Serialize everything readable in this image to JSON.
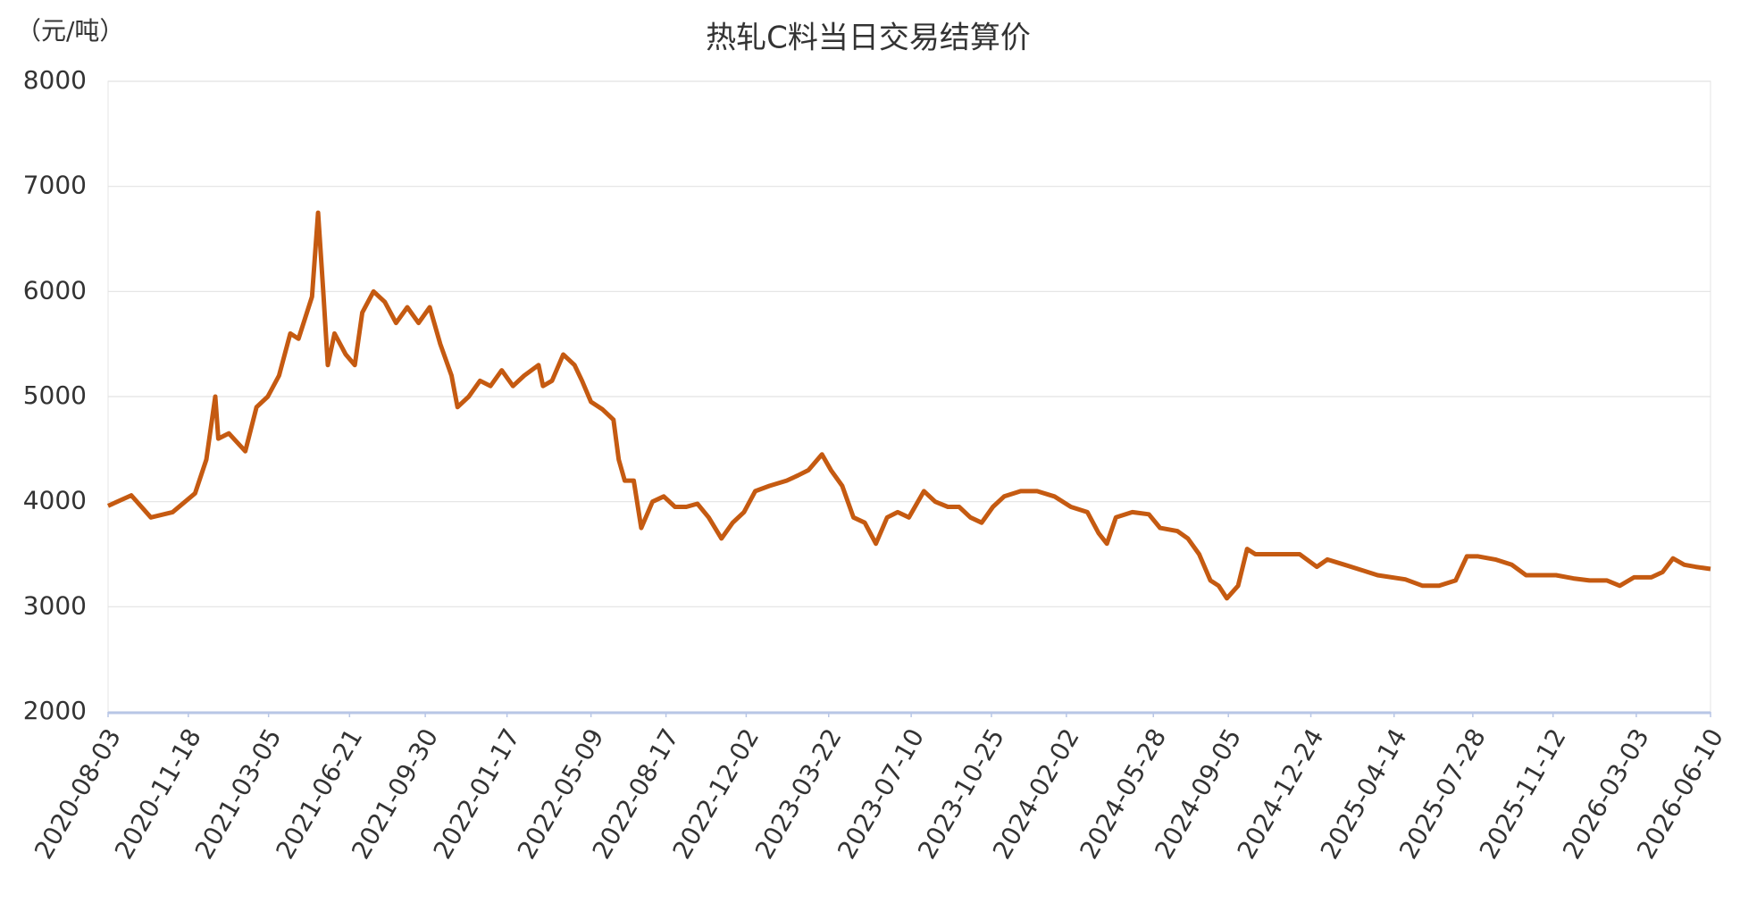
{
  "chart_data": {
    "type": "line",
    "title": "热轧C料当日交易结算价",
    "y_label": "（元/吨）",
    "x": [
      "2020-08-03",
      "2020-09-03",
      "2020-09-29",
      "2020-10-28",
      "2020-11-27",
      "2020-12-12",
      "2020-12-24",
      "2020-12-28",
      "2021-01-11",
      "2021-02-02",
      "2021-02-17",
      "2021-03-04",
      "2021-03-19",
      "2021-04-03",
      "2021-04-14",
      "2021-05-02",
      "2021-05-10",
      "2021-05-17",
      "2021-05-23",
      "2021-06-01",
      "2021-06-16",
      "2021-06-28",
      "2021-07-08",
      "2021-07-23",
      "2021-08-07",
      "2021-08-22",
      "2021-09-06",
      "2021-09-21",
      "2021-10-06",
      "2021-10-20",
      "2021-11-04",
      "2021-11-12",
      "2021-11-27",
      "2021-12-12",
      "2021-12-26",
      "2022-01-10",
      "2022-01-25",
      "2022-02-09",
      "2022-02-28",
      "2022-03-06",
      "2022-03-18",
      "2022-04-02",
      "2022-04-17",
      "2022-04-27",
      "2022-05-09",
      "2022-05-24",
      "2022-06-08",
      "2022-06-15",
      "2022-06-23",
      "2022-07-05",
      "2022-07-15",
      "2022-07-30",
      "2022-08-14",
      "2022-08-29",
      "2022-09-13",
      "2022-09-28",
      "2022-10-13",
      "2022-10-30",
      "2022-11-14",
      "2022-11-29",
      "2022-12-14",
      "2023-01-02",
      "2023-01-25",
      "2023-02-09",
      "2023-02-23",
      "2023-03-13",
      "2023-03-25",
      "2023-04-09",
      "2023-04-24",
      "2023-05-09",
      "2023-05-24",
      "2023-06-08",
      "2023-06-22",
      "2023-07-07",
      "2023-07-27",
      "2023-08-11",
      "2023-08-28",
      "2023-09-12",
      "2023-09-27",
      "2023-10-12",
      "2023-10-27",
      "2023-11-11",
      "2023-12-03",
      "2023-12-25",
      "2024-01-17",
      "2024-02-08",
      "2024-03-01",
      "2024-03-16",
      "2024-03-27",
      "2024-04-08",
      "2024-04-30",
      "2024-05-22",
      "2024-06-06",
      "2024-06-29",
      "2024-07-13",
      "2024-07-28",
      "2024-08-12",
      "2024-08-23",
      "2024-09-03",
      "2024-09-18",
      "2024-09-30",
      "2024-10-11",
      "2024-11-02",
      "2024-12-09",
      "2025-01-01",
      "2025-01-15",
      "2025-02-07",
      "2025-03-01",
      "2025-03-23",
      "2025-04-29",
      "2025-05-22",
      "2025-06-13",
      "2025-07-05",
      "2025-07-20",
      "2025-08-04",
      "2025-08-27",
      "2025-09-18",
      "2025-10-07",
      "2025-11-16",
      "2025-12-09",
      "2025-12-31",
      "2026-01-23",
      "2026-02-09",
      "2026-02-28",
      "2026-03-23",
      "2026-04-07",
      "2026-04-21",
      "2026-05-06",
      "2026-05-21",
      "2026-06-10"
    ],
    "series": [
      {
        "name": "热轧C料",
        "color": "#c55a11",
        "values": [
          3960,
          4060,
          3850,
          3900,
          4080,
          4400,
          5000,
          4600,
          4650,
          4480,
          4900,
          5000,
          5200,
          5600,
          5550,
          5950,
          6750,
          6000,
          5300,
          5600,
          5400,
          5300,
          5800,
          6000,
          5900,
          5700,
          5850,
          5700,
          5850,
          5500,
          5200,
          4900,
          5000,
          5150,
          5100,
          5250,
          5100,
          5200,
          5300,
          5100,
          5150,
          5400,
          5300,
          5150,
          4950,
          4880,
          4780,
          4400,
          4200,
          4200,
          3750,
          4000,
          4050,
          3950,
          3950,
          3980,
          3850,
          3650,
          3800,
          3900,
          4100,
          4150,
          4200,
          4250,
          4300,
          4450,
          4300,
          4150,
          3850,
          3800,
          3600,
          3850,
          3900,
          3850,
          4100,
          4000,
          3950,
          3950,
          3850,
          3800,
          3950,
          4050,
          4100,
          4100,
          4050,
          3950,
          3900,
          3700,
          3600,
          3850,
          3900,
          3880,
          3750,
          3720,
          3650,
          3500,
          3250,
          3200,
          3080,
          3200,
          3550,
          3500,
          3500,
          3500,
          3380,
          3450,
          3400,
          3350,
          3300,
          3260,
          3200,
          3200,
          3250,
          3480,
          3480,
          3450,
          3400,
          3300,
          3300,
          3270,
          3250,
          3250,
          3200,
          3280,
          3280,
          3330,
          3460,
          3400,
          3380,
          3360
        ]
      }
    ],
    "xlim": [
      "2020-08-03",
      "2026-06-10"
    ],
    "xticks": [
      "2020-08-03",
      "2020-11-18",
      "2021-03-05",
      "2021-06-21",
      "2021-09-30",
      "2022-01-17",
      "2022-05-09",
      "2022-08-17",
      "2022-12-02",
      "2023-03-22",
      "2023-07-10",
      "2023-10-25",
      "2024-02-02",
      "2024-05-28",
      "2024-09-05",
      "2024-12-24",
      "2025-04-14",
      "2025-07-28",
      "2025-11-12",
      "2026-03-03",
      "2026-06-10"
    ],
    "ylim": [
      2000,
      8000
    ],
    "yticks": [
      2000,
      3000,
      4000,
      5000,
      6000,
      7000,
      8000
    ],
    "grid": true
  }
}
